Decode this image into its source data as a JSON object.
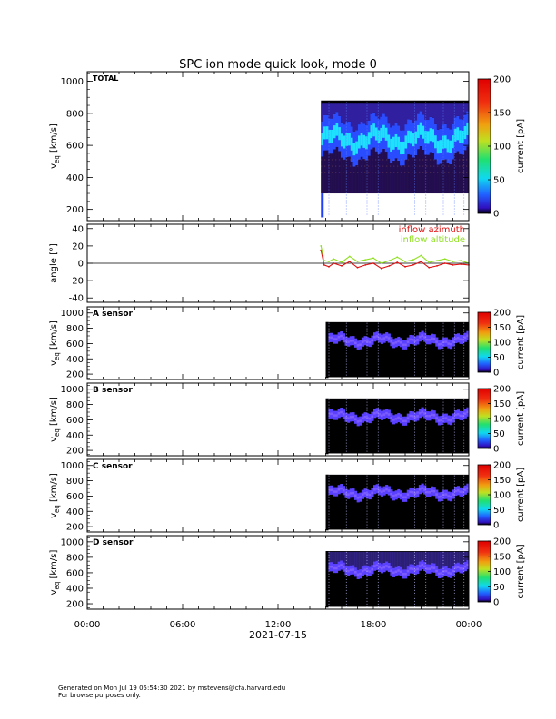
{
  "title": "SPC ion mode quick look, mode 0",
  "footer": {
    "line1": "Generated on Mon Jul 19 05:54:30 2021 by mstevens@cfa.harvard.edu",
    "line2": "For browse purposes only."
  },
  "time_axis": {
    "tick_labels": [
      "00:00",
      "06:00",
      "12:00",
      "18:00",
      "00:00"
    ],
    "date_label": "2021-07-15"
  },
  "colors": {
    "azimuth": "#e01010",
    "altitude": "#90e020",
    "background": "#000000",
    "core": "#20e0ff",
    "beam": "#5a40ff"
  },
  "chart_data": [
    {
      "type": "heatmap",
      "panel": "TOTAL",
      "label": "TOTAL",
      "ylabel": "v",
      "ylabel_sub": "eq",
      "ylabel_units": "[km/s]",
      "yticks": [
        "200",
        "400",
        "600",
        "800",
        "1000"
      ],
      "ylim": [
        130,
        1060
      ],
      "x_hours": [
        0,
        24
      ],
      "data_start_hour": 14.7,
      "colorbar": {
        "label": "current [pA]",
        "ticks": [
          "0",
          "50",
          "100",
          "150",
          "200"
        ],
        "range": [
          0,
          200
        ]
      },
      "peak_velocity_profile": [
        {
          "hour": 15.0,
          "v": 620
        },
        {
          "hour": 16.0,
          "v": 610
        },
        {
          "hour": 17.0,
          "v": 640
        },
        {
          "hour": 18.0,
          "v": 620
        },
        {
          "hour": 19.0,
          "v": 600
        },
        {
          "hour": 20.0,
          "v": 630
        },
        {
          "hour": 21.0,
          "v": 610
        },
        {
          "hour": 22.0,
          "v": 620
        },
        {
          "hour": 23.0,
          "v": 610
        },
        {
          "hour": 24.0,
          "v": 600
        }
      ]
    },
    {
      "type": "line",
      "panel": "angle",
      "ylabel": "angle [°]",
      "yticks": [
        "-40",
        "-20",
        "0",
        "20",
        "40"
      ],
      "ylim": [
        -45,
        45
      ],
      "legend": [
        "inflow azimuth",
        "inflow altitude"
      ],
      "series": [
        {
          "name": "inflow azimuth",
          "color": "#e01010",
          "x": [
            14.7,
            14.9,
            15.2,
            15.5,
            16.0,
            16.5,
            17.0,
            17.5,
            18.0,
            18.5,
            19.0,
            19.5,
            20.0,
            20.5,
            21.0,
            21.5,
            22.0,
            22.5,
            23.0,
            23.5,
            24.0
          ],
          "y": [
            15,
            -2,
            -4,
            0,
            -3,
            2,
            -5,
            -2,
            0,
            -6,
            -3,
            1,
            -4,
            -2,
            2,
            -5,
            -3,
            0,
            -2,
            -1,
            -2
          ]
        },
        {
          "name": "inflow altitude",
          "color": "#90e020",
          "x": [
            14.7,
            14.9,
            15.2,
            15.5,
            16.0,
            16.5,
            17.0,
            17.5,
            18.0,
            18.5,
            19.0,
            19.5,
            20.0,
            20.5,
            21.0,
            21.5,
            22.0,
            22.5,
            23.0,
            23.5,
            24.0
          ],
          "y": [
            20,
            3,
            2,
            5,
            1,
            8,
            2,
            4,
            6,
            0,
            3,
            7,
            2,
            4,
            9,
            1,
            3,
            5,
            2,
            3,
            0
          ]
        }
      ]
    },
    {
      "type": "heatmap",
      "panel": "A sensor",
      "label": "A sensor",
      "ylabel": "v",
      "ylabel_sub": "eq",
      "ylabel_units": "[km/s]",
      "yticks": [
        "200",
        "400",
        "600",
        "800",
        "1000"
      ],
      "ylim": [
        130,
        1080
      ],
      "data_start_hour": 15.0,
      "colorbar": {
        "label": "current [pA]",
        "ticks": [
          "0",
          "50",
          "100",
          "150",
          "200"
        ],
        "range": [
          0,
          200
        ]
      }
    },
    {
      "type": "heatmap",
      "panel": "B sensor",
      "label": "B sensor",
      "ylabel": "v",
      "ylabel_sub": "eq",
      "ylabel_units": "[km/s]",
      "yticks": [
        "200",
        "400",
        "600",
        "800",
        "1000"
      ],
      "ylim": [
        130,
        1080
      ],
      "data_start_hour": 15.0,
      "colorbar": {
        "label": "current [pA]",
        "ticks": [
          "0",
          "50",
          "100",
          "150",
          "200"
        ],
        "range": [
          0,
          200
        ]
      }
    },
    {
      "type": "heatmap",
      "panel": "C sensor",
      "label": "C sensor",
      "ylabel": "v",
      "ylabel_sub": "eq",
      "ylabel_units": "[km/s]",
      "yticks": [
        "200",
        "400",
        "600",
        "800",
        "1000"
      ],
      "ylim": [
        130,
        1080
      ],
      "data_start_hour": 15.0,
      "colorbar": {
        "label": "current [pA]",
        "ticks": [
          "0",
          "50",
          "100",
          "150",
          "200"
        ],
        "range": [
          0,
          200
        ]
      }
    },
    {
      "type": "heatmap",
      "panel": "D sensor",
      "label": "D sensor",
      "ylabel": "v",
      "ylabel_sub": "eq",
      "ylabel_units": "[km/s]",
      "yticks": [
        "200",
        "400",
        "600",
        "800",
        "1000"
      ],
      "ylim": [
        130,
        1080
      ],
      "data_start_hour": 15.0,
      "colorbar": {
        "label": "current [pA]",
        "ticks": [
          "0",
          "50",
          "100",
          "150",
          "200"
        ],
        "range": [
          0,
          200
        ]
      }
    }
  ]
}
